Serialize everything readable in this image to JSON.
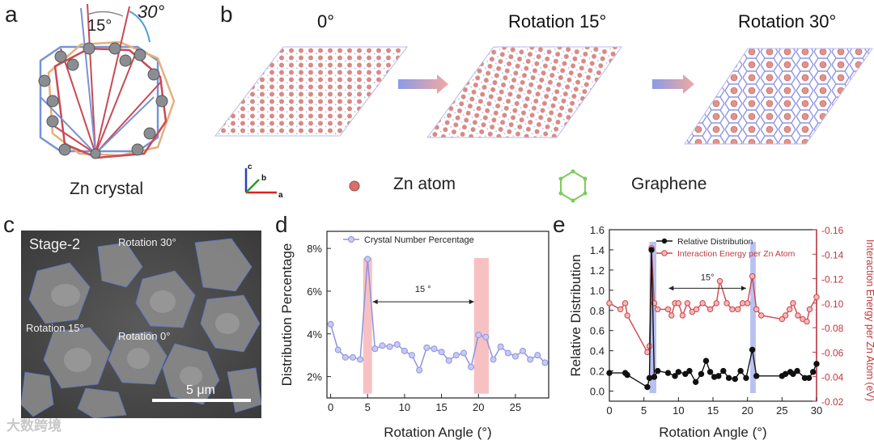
{
  "panels": {
    "a": {
      "label": "a",
      "angle1": "15°",
      "angle2": "30°",
      "caption": "Zn crystal"
    },
    "b": {
      "label": "b",
      "titles": [
        "0°",
        "Rotation 15°",
        "Rotation 30°"
      ],
      "axes": {
        "a": "a",
        "b": "b",
        "c": "c"
      },
      "legend": {
        "zn": "Zn atom",
        "graphene": "Graphene"
      }
    },
    "c": {
      "label": "c",
      "stage": "Stage-2",
      "rot30": "Rotation 30°",
      "rot15": "Rotation 15°",
      "rot0": "Rotation 0°",
      "scale": "5 μm"
    },
    "d": {
      "label": "d"
    },
    "e": {
      "label": "e"
    }
  },
  "watermark": "大数跨境",
  "chart_data": [
    {
      "type": "line",
      "panel": "d",
      "title": "",
      "xlabel": "Rotation Angle (°)",
      "ylabel": "Distribution Percentage",
      "xlim": [
        -0.5,
        29.5
      ],
      "ylim": [
        1.0,
        8.8
      ],
      "xticks": [
        0,
        5,
        10,
        15,
        20,
        25
      ],
      "yticks": [
        2,
        4,
        6,
        8
      ],
      "ytick_labels": [
        "2%",
        "4%",
        "6%",
        "8%"
      ],
      "annotation": "15 °",
      "highlight_bands": [
        [
          4.4,
          5.6
        ],
        [
          19.4,
          21.4
        ]
      ],
      "series": [
        {
          "name": "Crystal Number Percentage",
          "color": "#8f93e0",
          "x": [
            0,
            1,
            2,
            3,
            4,
            5,
            6,
            7,
            8,
            9,
            10,
            11,
            12,
            13,
            14,
            15,
            16,
            17,
            18,
            19,
            20,
            21,
            22,
            23,
            24,
            25,
            26,
            27,
            28,
            29
          ],
          "y": [
            4.45,
            3.25,
            2.9,
            2.9,
            2.8,
            7.5,
            3.3,
            3.45,
            3.4,
            3.5,
            3.2,
            3.0,
            2.3,
            3.35,
            3.3,
            3.15,
            2.75,
            3.0,
            3.1,
            2.45,
            3.95,
            3.85,
            2.8,
            3.4,
            3.1,
            2.95,
            3.2,
            2.8,
            3.0,
            2.65
          ]
        }
      ]
    },
    {
      "type": "line",
      "panel": "e",
      "title": "",
      "xlabel": "Rotation Angle (°)",
      "ylabel": "Relative Distribution",
      "y2label": "Interaction Energy per Zn Atom (eV)",
      "xlim": [
        0,
        30
      ],
      "ylim": [
        -0.1,
        1.6
      ],
      "y2lim": [
        -0.02,
        -0.16
      ],
      "xticks": [
        0,
        5,
        10,
        15,
        20,
        25,
        30
      ],
      "yticks": [
        0.0,
        0.2,
        0.4,
        0.6,
        0.8,
        1.0,
        1.2,
        1.4,
        1.6
      ],
      "ytick_labels": [
        "0.0",
        "0.2",
        "0.4",
        "0.6",
        "0.8",
        "1.0",
        "1.2",
        "1.4",
        "1.6"
      ],
      "y2ticks": [
        -0.02,
        -0.04,
        -0.06,
        -0.08,
        -0.1,
        -0.12,
        -0.14,
        -0.16
      ],
      "y2tick_labels": [
        "-0.02",
        "-0.04",
        "-0.06",
        "-0.08",
        "-0.10",
        "-0.12",
        "-0.14",
        "-0.16"
      ],
      "annotation": "15°",
      "highlight_bands": [
        [
          5.8,
          6.8
        ],
        [
          20.4,
          21.2
        ]
      ],
      "series": [
        {
          "name": "Relative Distribution",
          "color": "#111111",
          "axis": "left",
          "x": [
            0,
            2.3,
            2.6,
            5.5,
            5.8,
            6.1,
            6.5,
            7,
            8.5,
            9.5,
            10,
            11,
            11.6,
            12.5,
            13.3,
            14,
            14.6,
            15.2,
            15.8,
            16.5,
            17.3,
            18.2,
            19,
            19.8,
            20.7,
            21.3,
            25,
            25.5,
            26.2,
            26.6,
            27.2,
            28.3,
            28.9,
            29.5,
            30
          ],
          "y": [
            0.18,
            0.18,
            0.16,
            0.04,
            0.13,
            1.4,
            0.14,
            0.2,
            0.18,
            0.15,
            0.19,
            0.17,
            0.2,
            0.09,
            0.17,
            0.3,
            0.19,
            0.14,
            0.15,
            0.2,
            0.13,
            0.12,
            0.2,
            0.13,
            0.41,
            0.15,
            0.15,
            0.17,
            0.19,
            0.17,
            0.2,
            0.13,
            0.13,
            0.19,
            0.27
          ]
        },
        {
          "name": "Interaction Energy per Zn Atom",
          "color": "#d0444a",
          "axis": "right",
          "x": [
            0,
            1.6,
            2.3,
            2.6,
            5.5,
            5.8,
            6.1,
            6.5,
            7,
            8.5,
            9,
            9.5,
            10,
            10.6,
            11.3,
            12,
            12.6,
            13.5,
            14.6,
            15.5,
            16,
            17,
            17.8,
            18.6,
            19.3,
            20,
            20.7,
            21.3,
            22,
            25,
            25.5,
            26.1,
            26.6,
            27.3,
            28,
            28.6,
            29,
            30
          ],
          "y": [
            -0.1,
            -0.095,
            -0.1,
            -0.09,
            -0.06,
            -0.065,
            -0.145,
            -0.1,
            -0.095,
            -0.095,
            -0.09,
            -0.1,
            -0.1,
            -0.09,
            -0.1,
            -0.093,
            -0.095,
            -0.1,
            -0.095,
            -0.1,
            -0.118,
            -0.1,
            -0.095,
            -0.095,
            -0.1,
            -0.1,
            -0.122,
            -0.095,
            -0.09,
            -0.087,
            -0.09,
            -0.095,
            -0.1,
            -0.09,
            -0.087,
            -0.085,
            -0.095,
            -0.105
          ]
        }
      ]
    }
  ]
}
